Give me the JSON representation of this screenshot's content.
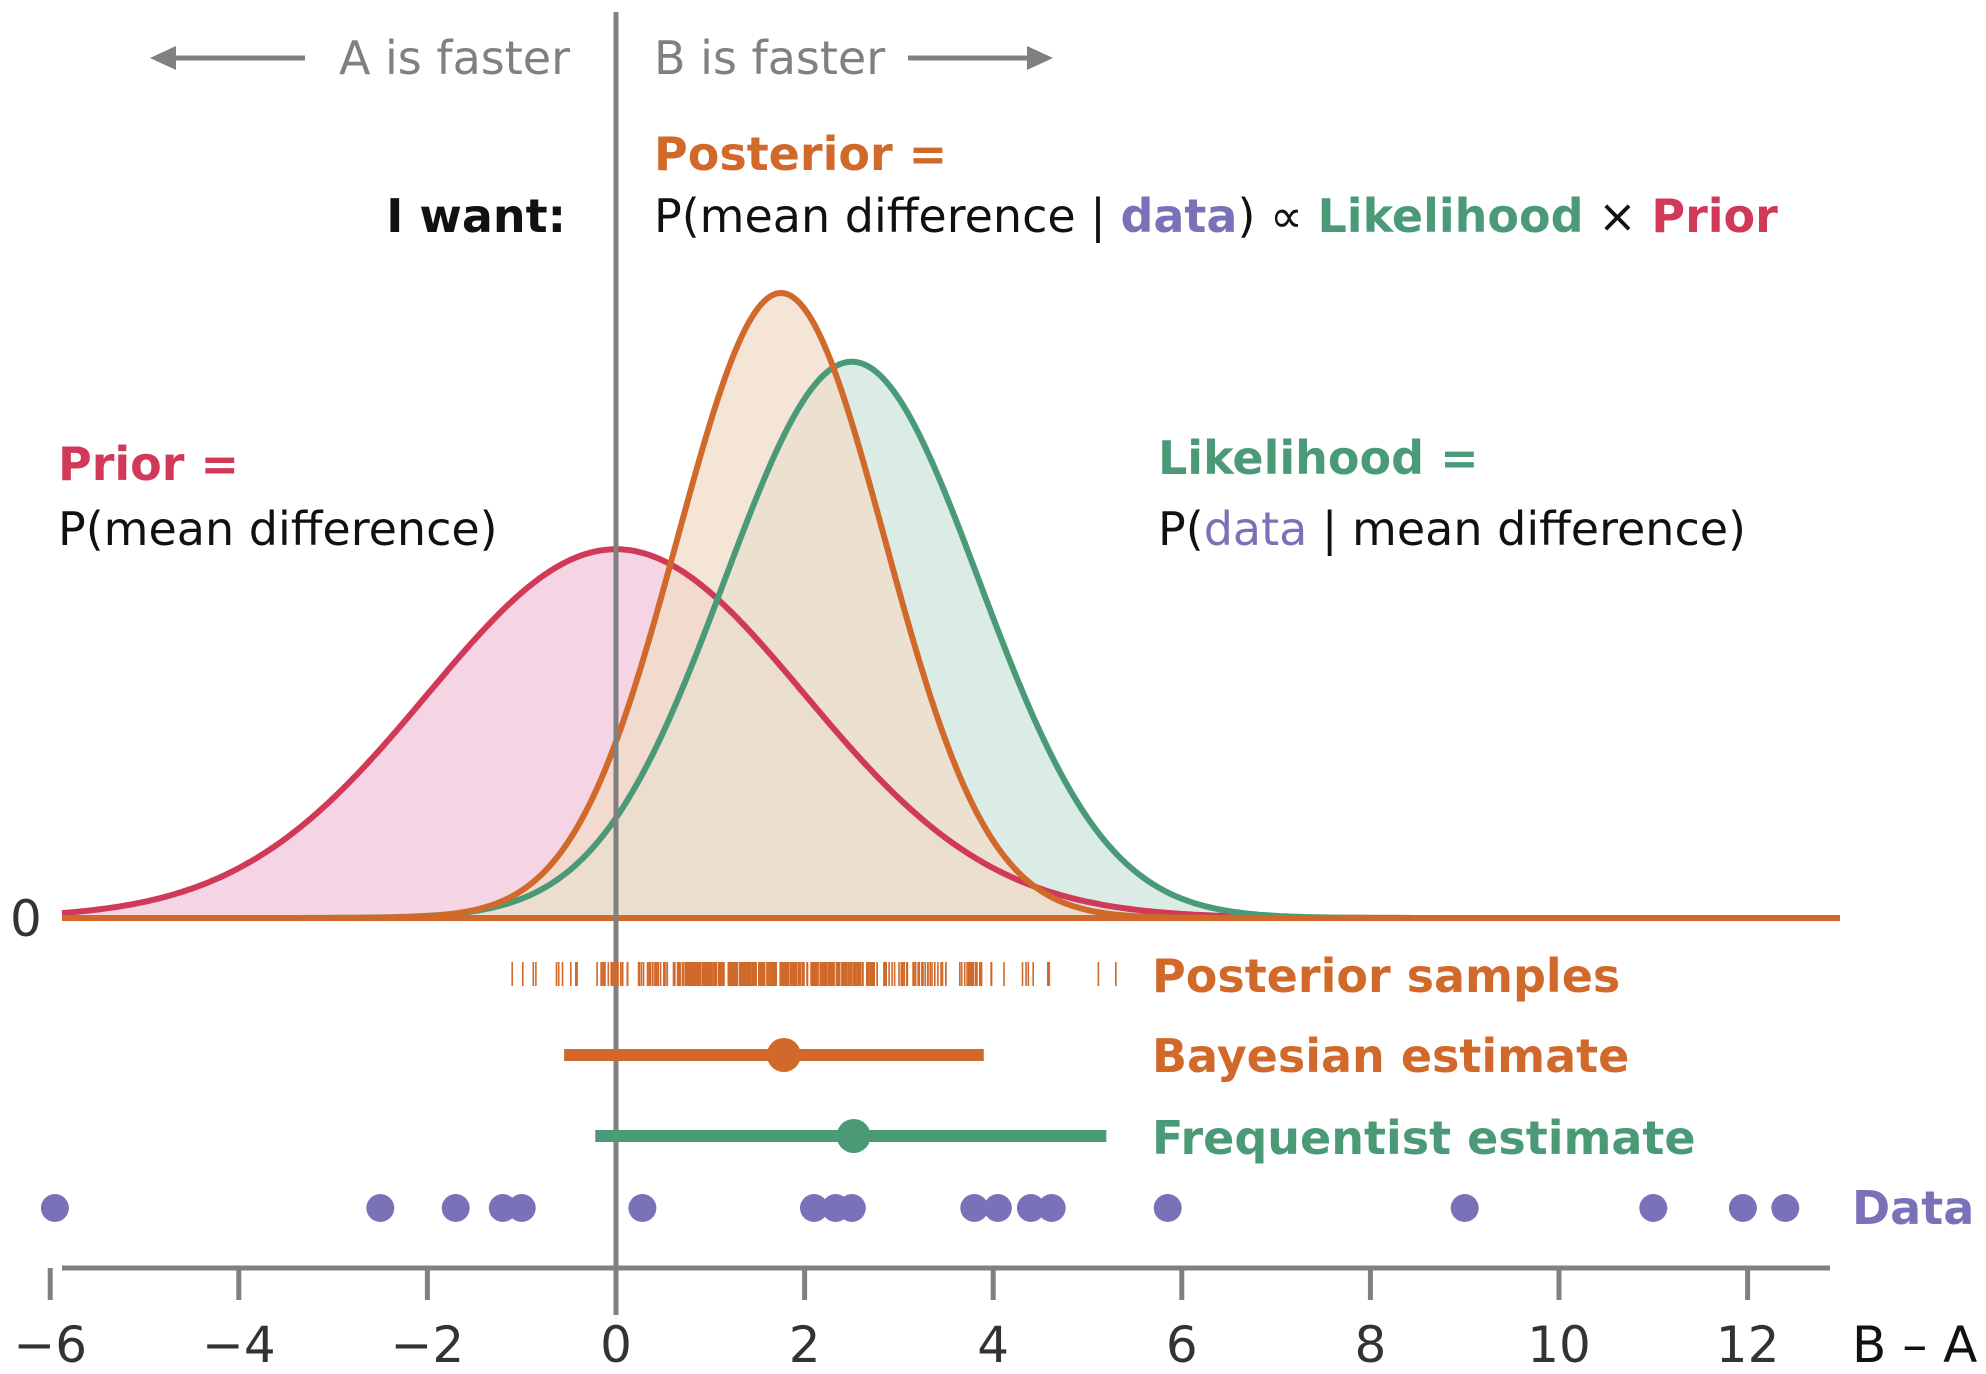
{
  "colors": {
    "prior": "#D03A58",
    "prior_fill": "#F2C6D9",
    "posterior": "#D0692A",
    "posterior_fill": "#F2DCC8",
    "likelihood": "#4A9A78",
    "likelihood_fill": "#CDE6DC",
    "data": "#7A72B8",
    "axis": "#808080",
    "text": "#111111"
  },
  "header": {
    "a_faster": "A is faster",
    "b_faster": "B is faster"
  },
  "annotations": {
    "posterior_title": "Posterior =",
    "i_want": "I want:",
    "eq_p": "P(mean difference | ",
    "eq_data": "data",
    "eq_close": ") ∝ ",
    "eq_likelihood": "Likelihood",
    "eq_times": " × ",
    "eq_prior": "Prior",
    "prior_title": "Prior =",
    "prior_def": "P(mean difference)",
    "likelihood_title": "Likelihood =",
    "lik_p": "P(",
    "lik_data": "data",
    "lik_rest": " | mean difference)",
    "zero_label": "0"
  },
  "chart_data": {
    "type": "line",
    "xlabel": "B – A",
    "xlim": [
      -6,
      13
    ],
    "x_ticks": [
      -6,
      -4,
      -2,
      0,
      2,
      4,
      6,
      8,
      10,
      12
    ],
    "x_tick_labels": [
      "−6",
      "−4",
      "−2",
      "0",
      "2",
      "4",
      "6",
      "8",
      "10",
      "12"
    ],
    "y_baseline_label": "0",
    "series": [
      {
        "name": "Prior",
        "distribution": "normal",
        "mean": 0,
        "sd": 2.0,
        "relative_peak": 0.59
      },
      {
        "name": "Likelihood",
        "distribution": "normal",
        "mean": 2.5,
        "sd": 1.35,
        "relative_peak": 0.89
      },
      {
        "name": "Posterior",
        "distribution": "normal",
        "mean": 1.75,
        "sd": 1.1,
        "relative_peak": 1.0
      }
    ],
    "posterior_samples": {
      "label": "Posterior samples",
      "range": [
        -2.6,
        5.3
      ]
    },
    "bayesian_estimate": {
      "label": "Bayesian estimate",
      "point": 1.78,
      "interval": [
        -0.55,
        3.9
      ]
    },
    "frequentist_estimate": {
      "label": "Frequentist estimate",
      "point": 2.52,
      "interval": [
        -0.22,
        5.2
      ]
    },
    "data_points": {
      "label": "Data",
      "values": [
        -5.95,
        -2.5,
        -1.7,
        -1.2,
        -1.0,
        0.28,
        2.1,
        2.33,
        2.5,
        3.8,
        4.05,
        4.4,
        4.62,
        5.85,
        9.0,
        11.0,
        11.95,
        12.4
      ]
    }
  }
}
